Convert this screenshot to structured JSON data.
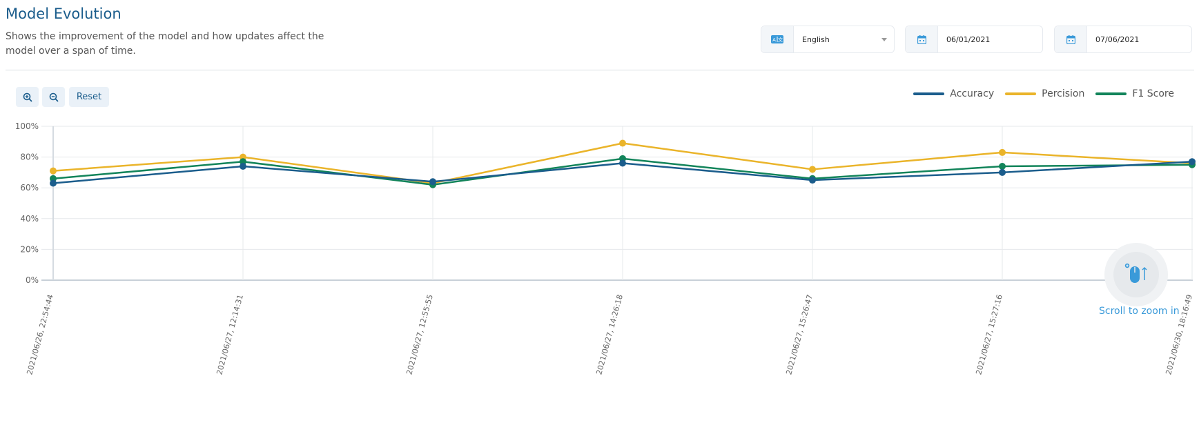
{
  "header": {
    "title": "Model Evolution",
    "subtitle": "Shows the improvement of the model and how updates affect the model over a span of time."
  },
  "filters": {
    "language": "English",
    "language_icon": "translate-icon",
    "date_from": "06/01/2021",
    "date_to": "07/06/2021",
    "date_icon": "calendar-icon"
  },
  "toolbar": {
    "zoom_in_icon": "zoom-in-icon",
    "zoom_out_icon": "zoom-out-icon",
    "reset_label": "Reset"
  },
  "hint": {
    "text": "Scroll to zoom in",
    "icon": "mouse-scroll-icon"
  },
  "chart_data": {
    "type": "line",
    "categories": [
      "2021/06/26, 22:54:44",
      "2021/06/27, 12:14:31",
      "2021/06/27, 12:55:55",
      "2021/06/27, 14:26:18",
      "2021/06/27, 15:26:47",
      "2021/06/27, 15:27:16",
      "2021/06/30, 18:16:49"
    ],
    "series": [
      {
        "name": "Accuracy",
        "color": "#1b5d8c",
        "values": [
          63,
          74,
          64,
          76,
          65,
          70,
          77
        ]
      },
      {
        "name": "Percision",
        "color": "#eab42a",
        "values": [
          71,
          80,
          63,
          89,
          72,
          83,
          76
        ]
      },
      {
        "name": "F1 Score",
        "color": "#12845a",
        "values": [
          66,
          77,
          62,
          79,
          66,
          74,
          75
        ]
      }
    ],
    "y_ticks": [
      "0%",
      "20%",
      "40%",
      "60%",
      "80%",
      "100%"
    ],
    "ylim": [
      0,
      100
    ],
    "grid": true,
    "legend_position": "top-right"
  }
}
